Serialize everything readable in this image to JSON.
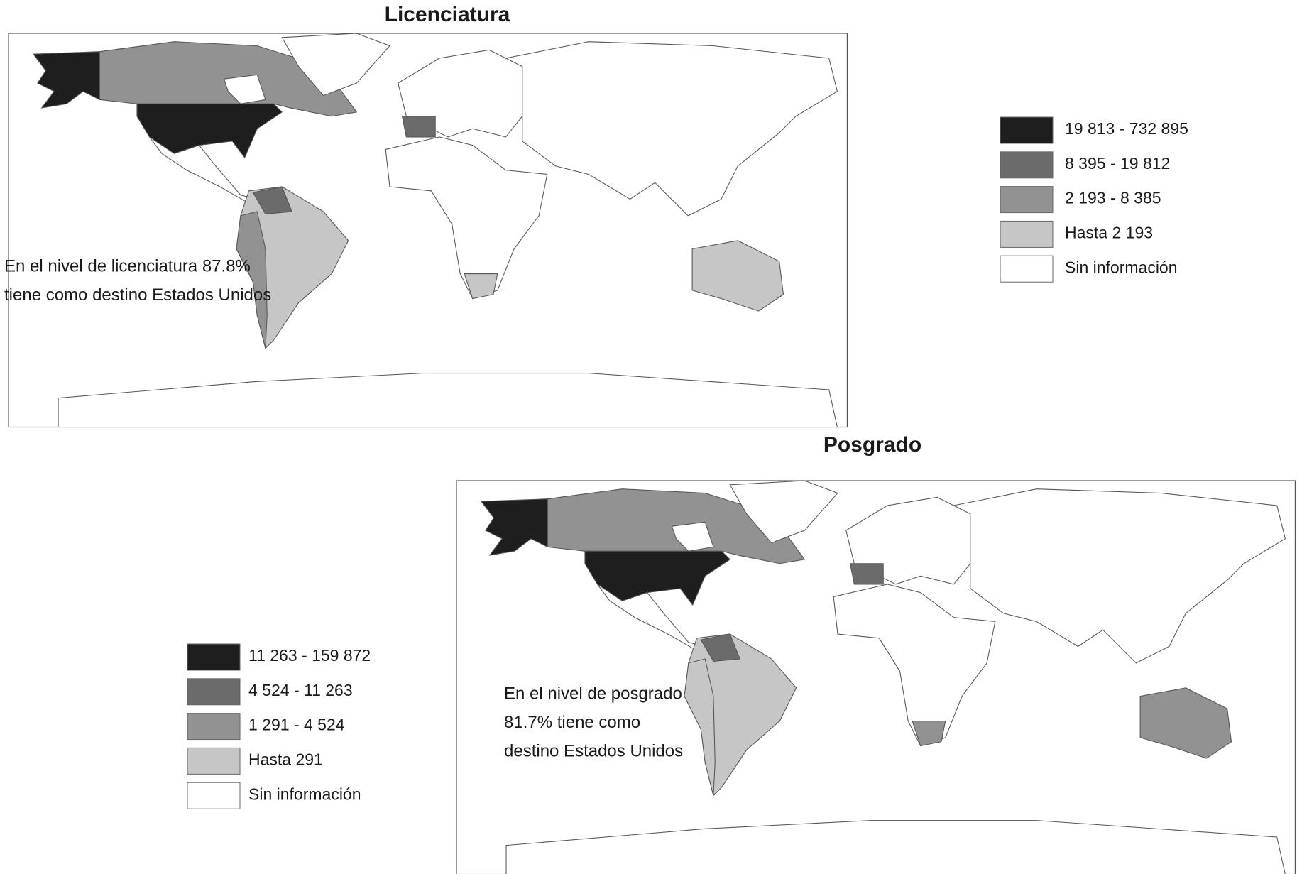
{
  "maps": [
    {
      "title": "Licenciatura",
      "legend": [
        {
          "label": "19 813 - 732 895",
          "color": "#1e1e1e"
        },
        {
          "label": "8 395 - 19 812",
          "color": "#6b6b6b"
        },
        {
          "label": "2 193 - 8 385",
          "color": "#929292"
        },
        {
          "label": "Hasta 2 193",
          "color": "#c6c6c6"
        },
        {
          "label": "Sin información",
          "color": "#ffffff"
        }
      ],
      "annotation": [
        "En el nivel de licenciatura 87.8%",
        "tiene como destino Estados Unidos"
      ]
    },
    {
      "title": "Posgrado",
      "legend": [
        {
          "label": "11 263 - 159 872",
          "color": "#1e1e1e"
        },
        {
          "label": "4 524 - 11 263",
          "color": "#6b6b6b"
        },
        {
          "label": "1 291 - 4 524",
          "color": "#929292"
        },
        {
          "label": "Hasta 291",
          "color": "#c6c6c6"
        },
        {
          "label": "Sin información",
          "color": "#ffffff"
        }
      ],
      "annotation": [
        "En el nivel de posgrado",
        "81.7% tiene como",
        "destino Estados Unidos"
      ]
    }
  ]
}
